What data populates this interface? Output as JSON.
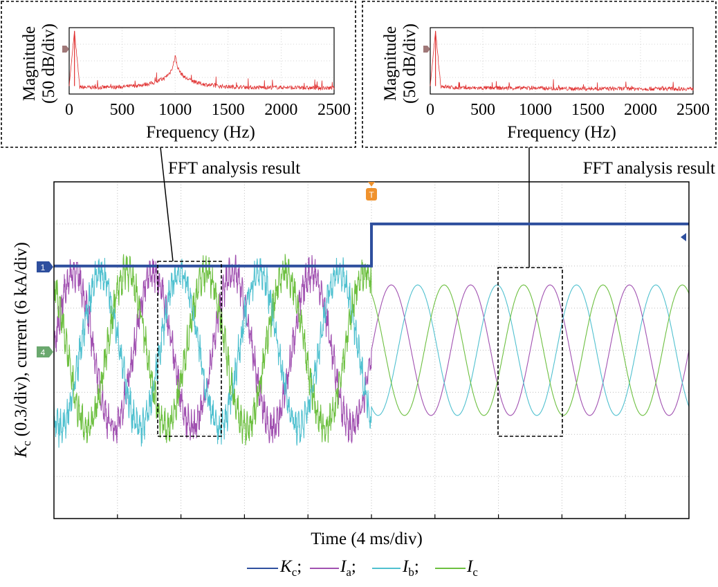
{
  "chart_data": [
    {
      "type": "line",
      "panel": "fft-left",
      "xlabel": "Frequency (Hz)",
      "ylabel_line1": "Magnitude",
      "ylabel_line2": "(50 dB/div)",
      "xlim": [
        0,
        2500
      ],
      "xticks": [
        "0",
        "500",
        "1000",
        "1500",
        "2000",
        "2500"
      ],
      "series": [
        {
          "color": "#e03030",
          "x": [
            0,
            50,
            100,
            200,
            300,
            400,
            500,
            600,
            700,
            800,
            900,
            950,
            980,
            1000,
            1020,
            1050,
            1100,
            1200,
            1300,
            1400,
            1500,
            1700,
            2000,
            2300,
            2500
          ],
          "y": [
            0.12,
            0.95,
            0.1,
            0.1,
            0.1,
            0.1,
            0.11,
            0.12,
            0.14,
            0.17,
            0.24,
            0.32,
            0.42,
            0.58,
            0.42,
            0.32,
            0.24,
            0.17,
            0.14,
            0.12,
            0.11,
            0.1,
            0.1,
            0.09,
            0.09
          ]
        }
      ],
      "caption": "FFT analysis result"
    },
    {
      "type": "line",
      "panel": "fft-right",
      "xlabel": "Frequency (Hz)",
      "ylabel_line1": "Magnitude",
      "ylabel_line2": "(50 dB/div)",
      "xlim": [
        0,
        2500
      ],
      "xticks": [
        "0",
        "500",
        "1000",
        "1500",
        "2000",
        "2500"
      ],
      "series": [
        {
          "color": "#e03030",
          "x": [
            0,
            50,
            100,
            200,
            300,
            500,
            800,
            1000,
            1300,
            1600,
            2000,
            2300,
            2500
          ],
          "y": [
            0.12,
            0.95,
            0.12,
            0.1,
            0.09,
            0.09,
            0.09,
            0.09,
            0.08,
            0.08,
            0.08,
            0.08,
            0.08
          ]
        }
      ],
      "caption": "FFT analysis result"
    },
    {
      "type": "line",
      "panel": "oscilloscope",
      "xlabel": "Time (4 ms/div)",
      "ylabel_parts": [
        "K",
        "c",
        " (0.3/div), current (6 kA/div)"
      ],
      "divisions": {
        "x": 10,
        "y": 8
      },
      "grid": true,
      "time_ms": [
        0,
        40
      ],
      "step_time_ms": 20,
      "series": [
        {
          "name": "Kc",
          "color": "#2e4f9e",
          "divs_before": 6.0,
          "divs_after": 7.0
        },
        {
          "name": "Ia",
          "color": "#a050b0",
          "frequency_hz": 200,
          "phase_deg": 0,
          "amplitude_divs_before": 1.85,
          "amplitude_divs_after": 1.55
        },
        {
          "name": "Ib",
          "color": "#4fc0cf",
          "frequency_hz": 200,
          "phase_deg": -120,
          "amplitude_divs_before": 1.85,
          "amplitude_divs_after": 1.55
        },
        {
          "name": "Ic",
          "color": "#6cbf3f",
          "frequency_hz": 200,
          "phase_deg": 120,
          "amplitude_divs_before": 1.85,
          "amplitude_divs_after": 1.55
        }
      ],
      "markers": {
        "ch1": "1",
        "ch4": "4",
        "trigger": "T"
      },
      "annotations": [
        "FFT analysis result",
        "FFT analysis result"
      ]
    }
  ],
  "legend": [
    {
      "main": "K",
      "sub": "c",
      "sep": ";",
      "color": "#2e4f9e"
    },
    {
      "main": "I",
      "sub": "a",
      "sep": ";",
      "color": "#a050b0"
    },
    {
      "main": "I",
      "sub": "b",
      "sep": ";",
      "color": "#4fc0cf"
    },
    {
      "main": "I",
      "sub": "c",
      "sep": "",
      "color": "#6cbf3f"
    }
  ]
}
